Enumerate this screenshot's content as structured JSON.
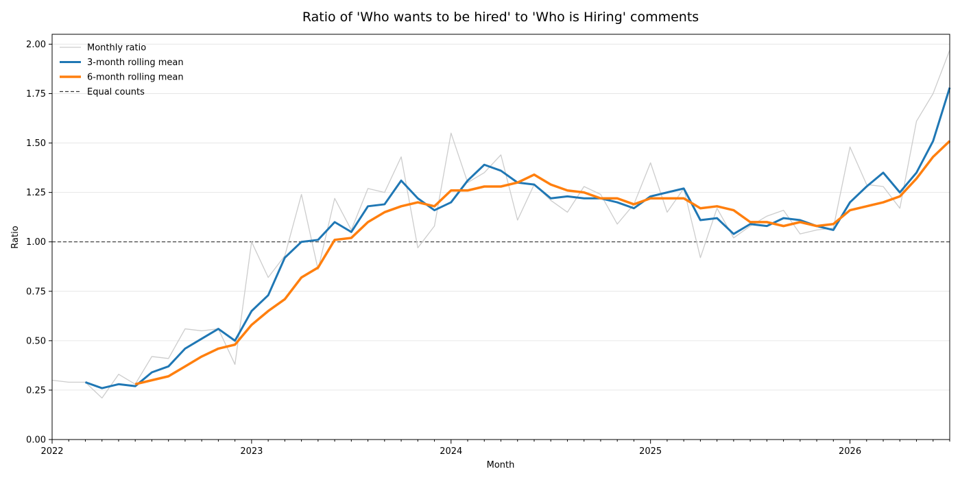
{
  "chart_data": {
    "type": "line",
    "title": "Ratio of 'Who wants to be hired' to 'Who is Hiring' comments",
    "xlabel": "Month",
    "ylabel": "Ratio",
    "x_start": "2022-01",
    "x_end": "2026-07",
    "xlim": [
      "2022-01",
      "2026-07"
    ],
    "ylim": [
      0,
      2.05
    ],
    "y_ticks": [
      "0.00",
      "0.25",
      "0.50",
      "0.75",
      "1.00",
      "1.25",
      "1.50",
      "1.75",
      "2.00"
    ],
    "x_tick_labels": [
      "2022",
      "2023",
      "2024",
      "2025",
      "2026"
    ],
    "grid": "horizontal",
    "legend_position": "top-left",
    "series": [
      {
        "name": "Monthly ratio",
        "color": "#cccccc",
        "start": "2022-01",
        "values": [
          0.3,
          0.29,
          0.29,
          0.21,
          0.33,
          0.28,
          0.42,
          0.41,
          0.56,
          0.55,
          0.56,
          0.38,
          1.0,
          0.82,
          0.93,
          1.24,
          0.86,
          1.22,
          1.06,
          1.27,
          1.25,
          1.43,
          0.97,
          1.08,
          1.55,
          1.3,
          1.35,
          1.44,
          1.11,
          1.29,
          1.21,
          1.15,
          1.28,
          1.24,
          1.09,
          1.19,
          1.4,
          1.15,
          1.27,
          0.92,
          1.17,
          1.02,
          1.08,
          1.13,
          1.16,
          1.04,
          1.06,
          1.07,
          1.48,
          1.29,
          1.28,
          1.17,
          1.61,
          1.75,
          1.97
        ]
      },
      {
        "name": "3-month rolling mean",
        "color": "#1f77b4",
        "start": "2022-03",
        "values": [
          0.29,
          0.26,
          0.28,
          0.27,
          0.34,
          0.37,
          0.46,
          0.51,
          0.56,
          0.5,
          0.65,
          0.73,
          0.92,
          1.0,
          1.01,
          1.1,
          1.05,
          1.18,
          1.19,
          1.31,
          1.22,
          1.16,
          1.2,
          1.31,
          1.39,
          1.36,
          1.3,
          1.29,
          1.22,
          1.23,
          1.22,
          1.22,
          1.2,
          1.17,
          1.23,
          1.25,
          1.27,
          1.11,
          1.12,
          1.04,
          1.09,
          1.08,
          1.12,
          1.11,
          1.08,
          1.06,
          1.2,
          1.28,
          1.35,
          1.25,
          1.35,
          1.51,
          1.78
        ]
      },
      {
        "name": "6-month rolling mean",
        "color": "#ff7f0e",
        "start": "2022-06",
        "values": [
          0.28,
          0.3,
          0.32,
          0.37,
          0.42,
          0.46,
          0.48,
          0.58,
          0.65,
          0.71,
          0.82,
          0.87,
          1.01,
          1.02,
          1.1,
          1.15,
          1.18,
          1.2,
          1.18,
          1.26,
          1.26,
          1.28,
          1.28,
          1.3,
          1.34,
          1.29,
          1.26,
          1.25,
          1.22,
          1.22,
          1.19,
          1.22,
          1.22,
          1.22,
          1.17,
          1.18,
          1.16,
          1.1,
          1.1,
          1.08,
          1.1,
          1.08,
          1.09,
          1.16,
          1.18,
          1.2,
          1.23,
          1.32,
          1.43,
          1.51
        ]
      }
    ],
    "reference_line": {
      "name": "Equal counts",
      "y": 1.0,
      "color": "#333333",
      "style": "dashed"
    }
  }
}
